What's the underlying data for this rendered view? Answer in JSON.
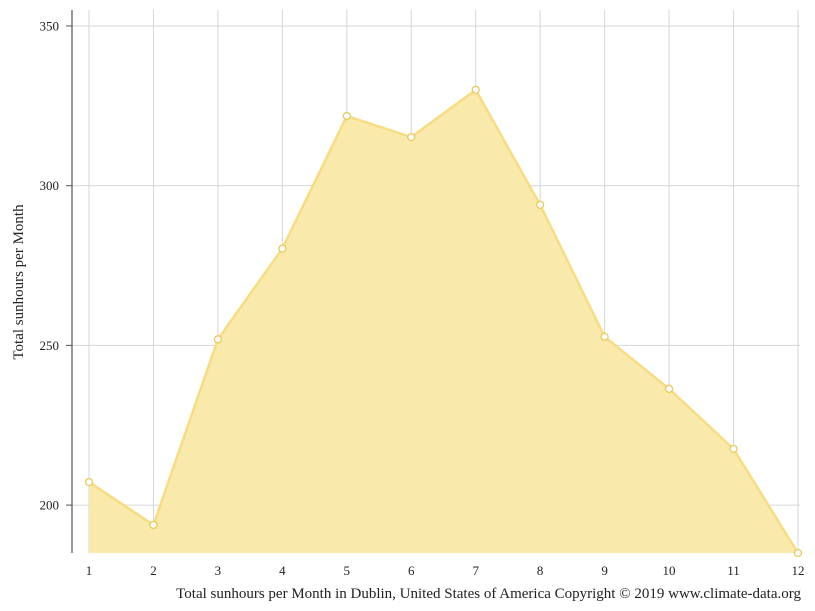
{
  "chart_data": {
    "type": "area",
    "ylabel": "Total sunhours per Month",
    "caption": "Total sunhours per Month in Dublin, United States of America Copyright © 2019 www.climate-data.org",
    "x": [
      1,
      2,
      3,
      4,
      5,
      6,
      7,
      8,
      9,
      10,
      11,
      12
    ],
    "x_tick_labels": [
      "1",
      "2",
      "3",
      "4",
      "5",
      "6",
      "7",
      "8",
      "9",
      "10",
      "11",
      "12"
    ],
    "y_ticks": [
      200,
      250,
      300,
      350
    ],
    "y_tick_labels": [
      "200",
      "250",
      "300",
      "350"
    ],
    "ylim": [
      185,
      355
    ],
    "grid": true,
    "series": [
      {
        "values": [
          207.2,
          193.8,
          251.9,
          280.3,
          321.8,
          315.2,
          330.0,
          294.0,
          252.7,
          236.4,
          217.6,
          185.0
        ],
        "color": "#f9e9a6",
        "line_color": "#f7dc82",
        "marker_stroke": "#e8c95a"
      }
    ]
  }
}
